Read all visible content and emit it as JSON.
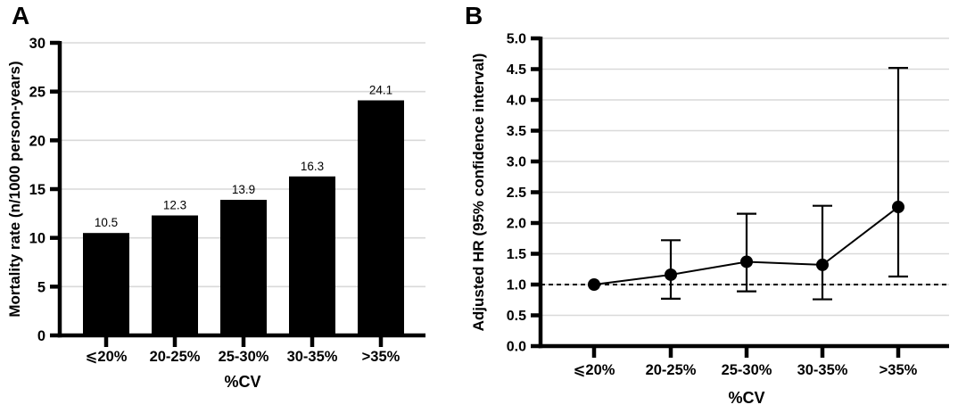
{
  "figure": {
    "background": "#ffffff",
    "colors": {
      "ink": "#000000",
      "gridline": "#d9d9d9",
      "bar": "#000000"
    },
    "panels": {
      "a": {
        "label": "A"
      },
      "b": {
        "label": "B"
      }
    }
  },
  "chart_data": [
    {
      "panel": "A",
      "type": "bar",
      "title": "",
      "xlabel": "%CV",
      "ylabel": "Mortality rate (n/1000 person-years)",
      "categories": [
        "⩽20%",
        "20-25%",
        "25-30%",
        "30-35%",
        ">35%"
      ],
      "values": [
        10.5,
        12.3,
        13.9,
        16.3,
        24.1
      ],
      "bar_labels": [
        "10.5",
        "12.3",
        "13.9",
        "16.3",
        "24.1"
      ],
      "ylim": [
        0,
        30
      ],
      "yticks": [
        0,
        5,
        10,
        15,
        20,
        25,
        30
      ],
      "ytick_labels": [
        "0",
        "5",
        "10",
        "15",
        "20",
        "25",
        "30"
      ],
      "grid": "horizontal",
      "legend": "none",
      "bar_color": "#000000"
    },
    {
      "panel": "B",
      "type": "line",
      "title": "",
      "xlabel": "%CV",
      "ylabel": "Adjusted HR (95% confidence interval)",
      "categories": [
        "⩽20%",
        "20-25%",
        "25-30%",
        "30-35%",
        ">35%"
      ],
      "series": [
        {
          "name": "Adjusted HR",
          "values": [
            1.0,
            1.16,
            1.37,
            1.32,
            2.26
          ],
          "ci_low": [
            null,
            0.77,
            0.89,
            0.76,
            1.13
          ],
          "ci_high": [
            null,
            1.72,
            2.15,
            2.28,
            4.52
          ]
        }
      ],
      "reference_line": 1.0,
      "ylim": [
        0.0,
        5.0
      ],
      "yticks": [
        0.0,
        0.5,
        1.0,
        1.5,
        2.0,
        2.5,
        3.0,
        3.5,
        4.0,
        4.5,
        5.0
      ],
      "ytick_labels": [
        "0.0",
        "0.5",
        "1.0",
        "1.5",
        "2.0",
        "2.5",
        "3.0",
        "3.5",
        "4.0",
        "4.5",
        "5.0"
      ],
      "grid": "horizontal",
      "legend": "none",
      "marker": "filled-circle"
    }
  ]
}
